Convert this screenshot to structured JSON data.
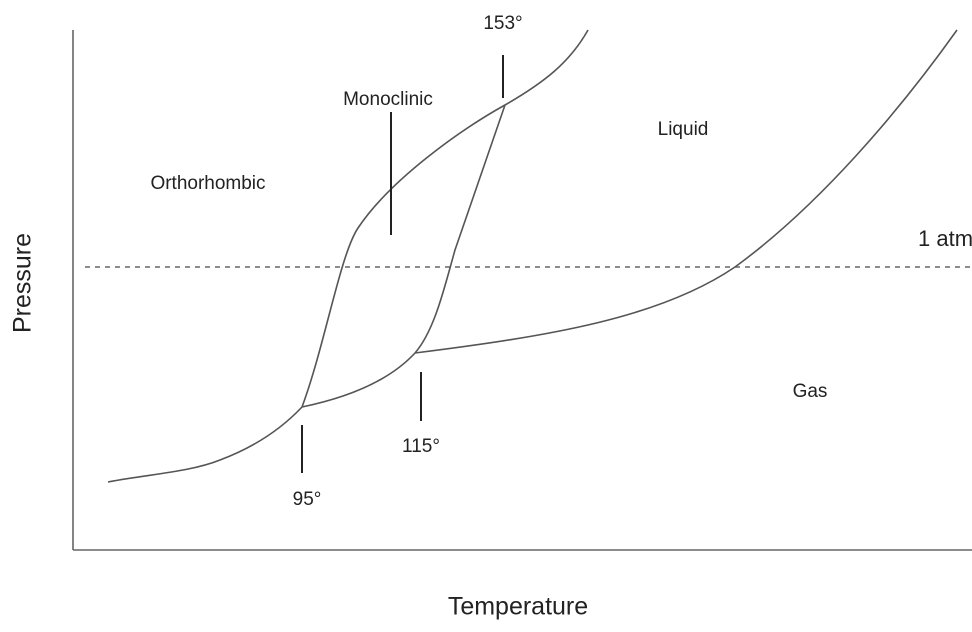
{
  "axes": {
    "x_label": "Temperature",
    "y_label": "Pressure"
  },
  "regions": {
    "orthorhombic": "Orthorhombic",
    "monoclinic": "Monoclinic",
    "liquid": "Liquid",
    "gas": "Gas"
  },
  "reference_line": "1 atm",
  "points": {
    "p95": "95°",
    "p115": "115°",
    "p153": "153°"
  }
}
